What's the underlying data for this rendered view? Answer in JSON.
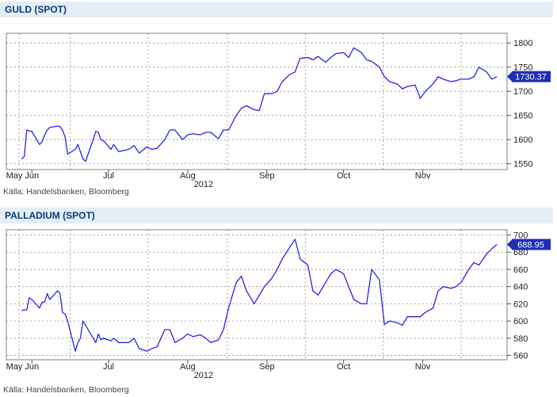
{
  "colors": {
    "header_bg": "#e4eef6",
    "title": "#0d3b7a",
    "line": "#2626e0",
    "grid": "#909090",
    "badge_bg": "#1e2fb8"
  },
  "panels": [
    {
      "title": "GULD (SPOT)",
      "source": "Källa: Handelsbanken, Bloomberg"
    },
    {
      "title": "PALLADIUM (SPOT)",
      "source": "Källa: Handelsbanken, Bloomberg"
    }
  ],
  "chart_data": [
    {
      "type": "line",
      "title": "GULD (SPOT)",
      "year_label": "2012",
      "months": [
        "May",
        "Jun",
        "Jul",
        "Aug",
        "Sep",
        "Oct",
        "Nov"
      ],
      "yticks": [
        1550,
        1600,
        1650,
        1700,
        1750,
        1800
      ],
      "ylim": [
        1538,
        1820
      ],
      "last_value": "1730.37",
      "grid": true,
      "x_dates": [
        "2012-05-28",
        "2012-05-29",
        "2012-05-30",
        "2012-05-31",
        "2012-06-01",
        "2012-06-04",
        "2012-06-05",
        "2012-06-06",
        "2012-06-07",
        "2012-06-08",
        "2012-06-11",
        "2012-06-12",
        "2012-06-13",
        "2012-06-14",
        "2012-06-15",
        "2012-06-18",
        "2012-06-19",
        "2012-06-20",
        "2012-06-21",
        "2012-06-22",
        "2012-06-25",
        "2012-06-26",
        "2012-06-27",
        "2012-06-28",
        "2012-06-29",
        "2012-07-02",
        "2012-07-03",
        "2012-07-05",
        "2012-07-09",
        "2012-07-11",
        "2012-07-13",
        "2012-07-16",
        "2012-07-18",
        "2012-07-20",
        "2012-07-23",
        "2012-07-25",
        "2012-07-27",
        "2012-07-30",
        "2012-08-01",
        "2012-08-03",
        "2012-08-06",
        "2012-08-08",
        "2012-08-10",
        "2012-08-13",
        "2012-08-15",
        "2012-08-17",
        "2012-08-20",
        "2012-08-22",
        "2012-08-24",
        "2012-08-27",
        "2012-08-29",
        "2012-08-31",
        "2012-09-03",
        "2012-09-05",
        "2012-09-07",
        "2012-09-10",
        "2012-09-12",
        "2012-09-14",
        "2012-09-17",
        "2012-09-19",
        "2012-09-21",
        "2012-09-24",
        "2012-09-26",
        "2012-09-28",
        "2012-10-01",
        "2012-10-03",
        "2012-10-05",
        "2012-10-08",
        "2012-10-10",
        "2012-10-12",
        "2012-10-15",
        "2012-10-17",
        "2012-10-19",
        "2012-10-22",
        "2012-10-24",
        "2012-10-26",
        "2012-10-29",
        "2012-10-31",
        "2012-11-02",
        "2012-11-05",
        "2012-11-07",
        "2012-11-09",
        "2012-11-12",
        "2012-11-14",
        "2012-11-16",
        "2012-11-19",
        "2012-11-21",
        "2012-11-23",
        "2012-11-26",
        "2012-11-28",
        "2012-11-30"
      ],
      "values": [
        1560,
        1565,
        1620,
        1618,
        1617,
        1590,
        1595,
        1610,
        1620,
        1625,
        1628,
        1627,
        1620,
        1605,
        1570,
        1580,
        1590,
        1575,
        1560,
        1555,
        1600,
        1617,
        1615,
        1600,
        1598,
        1580,
        1590,
        1575,
        1580,
        1588,
        1572,
        1585,
        1580,
        1582,
        1600,
        1620,
        1620,
        1600,
        1610,
        1612,
        1610,
        1615,
        1615,
        1602,
        1620,
        1620,
        1650,
        1665,
        1670,
        1662,
        1660,
        1695,
        1695,
        1700,
        1720,
        1735,
        1740,
        1768,
        1770,
        1765,
        1772,
        1760,
        1770,
        1778,
        1780,
        1770,
        1790,
        1780,
        1765,
        1762,
        1750,
        1730,
        1720,
        1715,
        1705,
        1710,
        1713,
        1685,
        1700,
        1715,
        1730,
        1725,
        1720,
        1722,
        1725,
        1725,
        1730,
        1750,
        1740,
        1725,
        1730.37
      ]
    },
    {
      "type": "line",
      "title": "PALLADIUM (SPOT)",
      "year_label": "2012",
      "months": [
        "May",
        "Jun",
        "Jul",
        "Aug",
        "Sep",
        "Oct",
        "Nov"
      ],
      "yticks": [
        560,
        580,
        600,
        620,
        640,
        660,
        680,
        700
      ],
      "ylim": [
        555,
        706
      ],
      "last_value": "688.95",
      "grid": true,
      "x_dates": [
        "2012-05-28",
        "2012-05-29",
        "2012-05-30",
        "2012-05-31",
        "2012-06-01",
        "2012-06-04",
        "2012-06-05",
        "2012-06-06",
        "2012-06-07",
        "2012-06-08",
        "2012-06-11",
        "2012-06-12",
        "2012-06-13",
        "2012-06-14",
        "2012-06-15",
        "2012-06-18",
        "2012-06-19",
        "2012-06-20",
        "2012-06-21",
        "2012-06-22",
        "2012-06-25",
        "2012-06-26",
        "2012-06-27",
        "2012-06-28",
        "2012-06-29",
        "2012-07-02",
        "2012-07-03",
        "2012-07-05",
        "2012-07-09",
        "2012-07-11",
        "2012-07-13",
        "2012-07-16",
        "2012-07-18",
        "2012-07-20",
        "2012-07-23",
        "2012-07-25",
        "2012-07-27",
        "2012-07-30",
        "2012-08-01",
        "2012-08-03",
        "2012-08-06",
        "2012-08-08",
        "2012-08-10",
        "2012-08-13",
        "2012-08-15",
        "2012-08-17",
        "2012-08-20",
        "2012-08-22",
        "2012-08-24",
        "2012-08-27",
        "2012-08-29",
        "2012-08-31",
        "2012-09-03",
        "2012-09-05",
        "2012-09-07",
        "2012-09-10",
        "2012-09-12",
        "2012-09-14",
        "2012-09-17",
        "2012-09-19",
        "2012-09-21",
        "2012-09-24",
        "2012-09-26",
        "2012-09-28",
        "2012-10-01",
        "2012-10-03",
        "2012-10-05",
        "2012-10-08",
        "2012-10-10",
        "2012-10-12",
        "2012-10-15",
        "2012-10-17",
        "2012-10-19",
        "2012-10-22",
        "2012-10-24",
        "2012-10-26",
        "2012-10-29",
        "2012-10-31",
        "2012-11-02",
        "2012-11-05",
        "2012-11-07",
        "2012-11-09",
        "2012-11-12",
        "2012-11-14",
        "2012-11-16",
        "2012-11-19",
        "2012-11-21",
        "2012-11-23",
        "2012-11-26",
        "2012-11-28",
        "2012-11-30"
      ],
      "values": [
        612,
        613,
        613,
        627,
        625,
        615,
        622,
        622,
        632,
        625,
        635,
        632,
        610,
        608,
        600,
        565,
        575,
        580,
        600,
        595,
        580,
        575,
        585,
        578,
        580,
        577,
        580,
        575,
        575,
        580,
        568,
        565,
        568,
        570,
        590,
        590,
        575,
        580,
        585,
        582,
        584,
        580,
        575,
        578,
        590,
        615,
        645,
        652,
        635,
        620,
        630,
        640,
        650,
        660,
        672,
        686,
        695,
        672,
        665,
        635,
        630,
        645,
        655,
        660,
        655,
        640,
        625,
        620,
        620,
        660,
        648,
        596,
        600,
        598,
        595,
        605,
        605,
        605,
        610,
        615,
        635,
        640,
        638,
        640,
        645,
        660,
        668,
        665,
        678,
        684,
        688.95
      ]
    }
  ]
}
